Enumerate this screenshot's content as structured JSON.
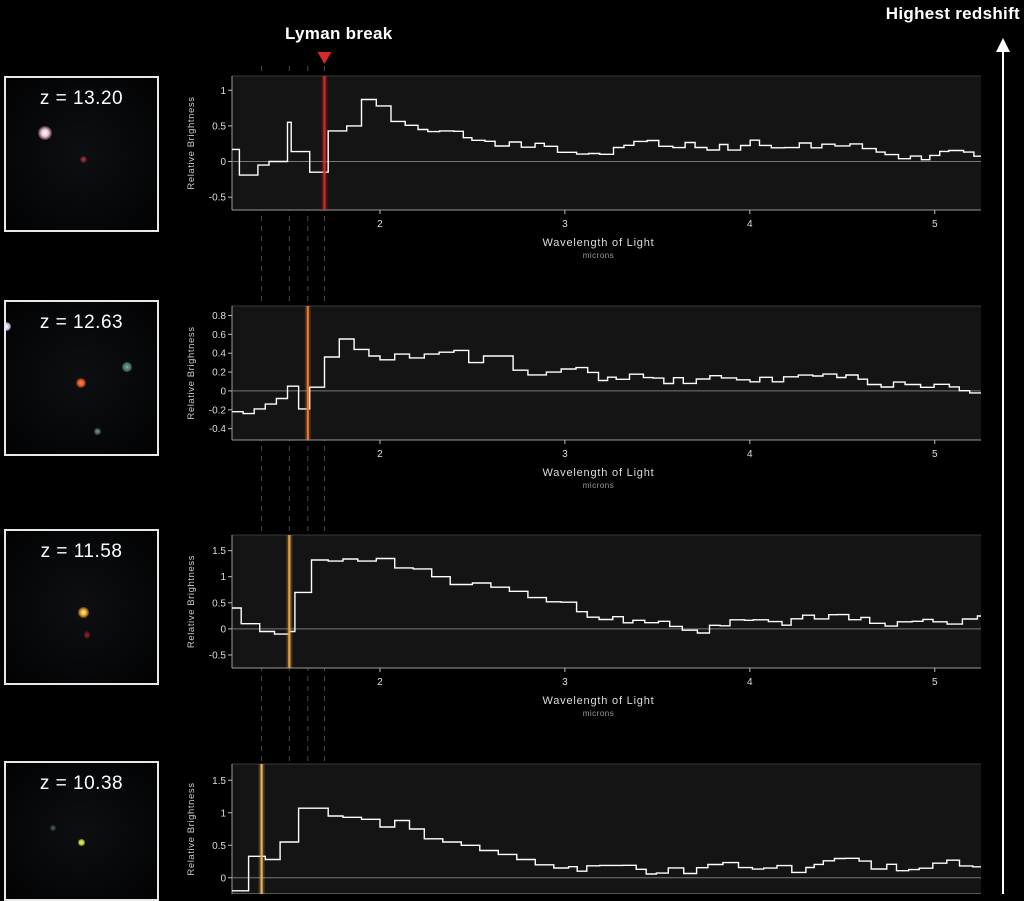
{
  "header": {
    "lyman_label": "Lyman break",
    "redshift_label": "Highest redshift"
  },
  "colors": {
    "background": "#000000",
    "plot_bg": "#141414",
    "spectrum": "#ffffff",
    "break_red": "#d42a2a",
    "break_orange": "#e88a3a",
    "break_gold": "#e8b45a"
  },
  "galaxies": [
    {
      "z_label": "z = 13.20",
      "blobs": [
        {
          "color": "#f2c9d8",
          "size": 14
        },
        {
          "color": "#c23a4a",
          "size": 7
        }
      ]
    },
    {
      "z_label": "z = 12.63",
      "blobs": [
        {
          "color": "#e05a2a",
          "size": 9
        },
        {
          "color": "#5a8a8a",
          "size": 8
        },
        {
          "color": "#7aa0a8",
          "size": 6
        },
        {
          "color": "#d8c8f0",
          "size": 9
        }
      ]
    },
    {
      "z_label": "z = 11.58",
      "blobs": [
        {
          "color": "#f0b030",
          "size": 10
        },
        {
          "color": "#a02020",
          "size": 6
        }
      ]
    },
    {
      "z_label": "z = 10.38",
      "blobs": [
        {
          "color": "#c8d040",
          "size": 6
        },
        {
          "color": "#4a6a5a",
          "size": 6
        }
      ]
    }
  ],
  "chart_data": [
    {
      "type": "line",
      "galaxy": "z = 13.20",
      "ylabel": "Relative Brightness",
      "xlabel": "Wavelength of Light",
      "xunit": "microns",
      "xlim": [
        1.2,
        5.25
      ],
      "ylim": [
        -0.68,
        1.2
      ],
      "yticks": [
        -0.5,
        0,
        0.5,
        1
      ],
      "ytick_labels": [
        "-0.5",
        "0",
        "0.5",
        "1"
      ],
      "xticks": [
        2,
        3,
        4,
        5
      ],
      "xtick_labels": [
        "2",
        "3",
        "4",
        "5"
      ],
      "lyman_break": 1.7,
      "break_color": "#d42a2a",
      "x": [
        1.2,
        1.24,
        1.34,
        1.4,
        1.5,
        1.52,
        1.62,
        1.72,
        1.82,
        1.9,
        1.98
      ],
      "values": [
        0.17,
        -0.19,
        -0.05,
        0.0,
        0.55,
        0.14,
        -0.15,
        0.43,
        0.5,
        0.87,
        0.78
      ]
    },
    {
      "type": "line",
      "galaxy": "z = 12.63",
      "ylabel": "Relative Brightness",
      "xlabel": "Wavelength of Light",
      "xunit": "microns",
      "xlim": [
        1.2,
        5.25
      ],
      "ylim": [
        -0.52,
        0.9
      ],
      "yticks": [
        -0.4,
        -0.2,
        0,
        0.2,
        0.4,
        0.6,
        0.8
      ],
      "ytick_labels": [
        "-0.4",
        "-0.2",
        "0",
        "0.2",
        "0.4",
        "0.6",
        "0.8"
      ],
      "xticks": [
        2,
        3,
        4,
        5
      ],
      "xtick_labels": [
        "2",
        "3",
        "4",
        "5"
      ],
      "lyman_break": 1.61,
      "break_color": "#e87a30",
      "x": [
        1.2,
        1.26,
        1.32,
        1.38,
        1.44,
        1.5,
        1.56,
        1.62,
        1.7,
        1.78,
        1.86,
        1.94,
        2.0,
        2.08,
        2.16,
        2.24,
        2.32,
        2.4,
        2.48,
        2.56,
        2.64,
        2.72,
        2.8,
        2.9
      ],
      "values": [
        -0.22,
        -0.24,
        -0.19,
        -0.14,
        -0.08,
        0.05,
        -0.19,
        0.04,
        0.36,
        0.55,
        0.44,
        0.37,
        0.33,
        0.39,
        0.35,
        0.39,
        0.41,
        0.43,
        0.3,
        0.37,
        0.37,
        0.22,
        0.17,
        0.2
      ]
    },
    {
      "type": "line",
      "galaxy": "z = 11.58",
      "ylabel": "Relative Brightness",
      "xlabel": "Wavelength of Light",
      "xunit": "microns",
      "xlim": [
        1.2,
        5.25
      ],
      "ylim": [
        -0.75,
        1.8
      ],
      "yticks": [
        -0.5,
        0,
        0.5,
        1,
        1.5
      ],
      "ytick_labels": [
        "-0.5",
        "0",
        "0.5",
        "1",
        "1.5"
      ],
      "xticks": [
        2,
        3,
        4,
        5
      ],
      "xtick_labels": [
        "2",
        "3",
        "4",
        "5"
      ],
      "lyman_break": 1.51,
      "break_color": "#e8a040",
      "x": [
        1.2,
        1.25,
        1.35,
        1.43,
        1.51,
        1.54,
        1.63,
        1.72,
        1.8,
        1.88,
        1.98,
        2.08,
        2.18,
        2.28,
        2.38,
        2.5,
        2.6,
        2.7,
        2.8,
        2.9
      ],
      "values": [
        0.4,
        0.1,
        -0.05,
        -0.1,
        -0.05,
        0.7,
        1.32,
        1.3,
        1.34,
        1.3,
        1.35,
        1.17,
        1.15,
        1.0,
        0.85,
        0.88,
        0.8,
        0.72,
        0.6,
        0.52
      ]
    },
    {
      "type": "line",
      "galaxy": "z = 10.38",
      "ylabel": "Relative Brightness",
      "xlabel": "",
      "xunit": "",
      "xlim": [
        1.2,
        5.25
      ],
      "ylim": [
        -0.25,
        1.75
      ],
      "yticks": [
        0,
        0.5,
        1,
        1.5
      ],
      "ytick_labels": [
        "0",
        "0.5",
        "1",
        "1.5"
      ],
      "xticks": [],
      "xtick_labels": [],
      "lyman_break": 1.36,
      "break_color": "#e8b45a",
      "x": [
        1.2,
        1.29,
        1.38,
        1.46,
        1.56,
        1.64,
        1.72,
        1.8,
        1.9,
        2.0,
        2.08,
        2.16,
        2.24,
        2.34,
        2.44,
        2.54,
        2.64,
        2.74,
        2.84,
        2.94
      ],
      "values": [
        -0.2,
        0.33,
        0.28,
        0.55,
        1.07,
        1.07,
        0.95,
        0.93,
        0.9,
        0.78,
        0.88,
        0.75,
        0.6,
        0.55,
        0.5,
        0.42,
        0.36,
        0.28,
        0.2,
        0.15
      ]
    }
  ]
}
